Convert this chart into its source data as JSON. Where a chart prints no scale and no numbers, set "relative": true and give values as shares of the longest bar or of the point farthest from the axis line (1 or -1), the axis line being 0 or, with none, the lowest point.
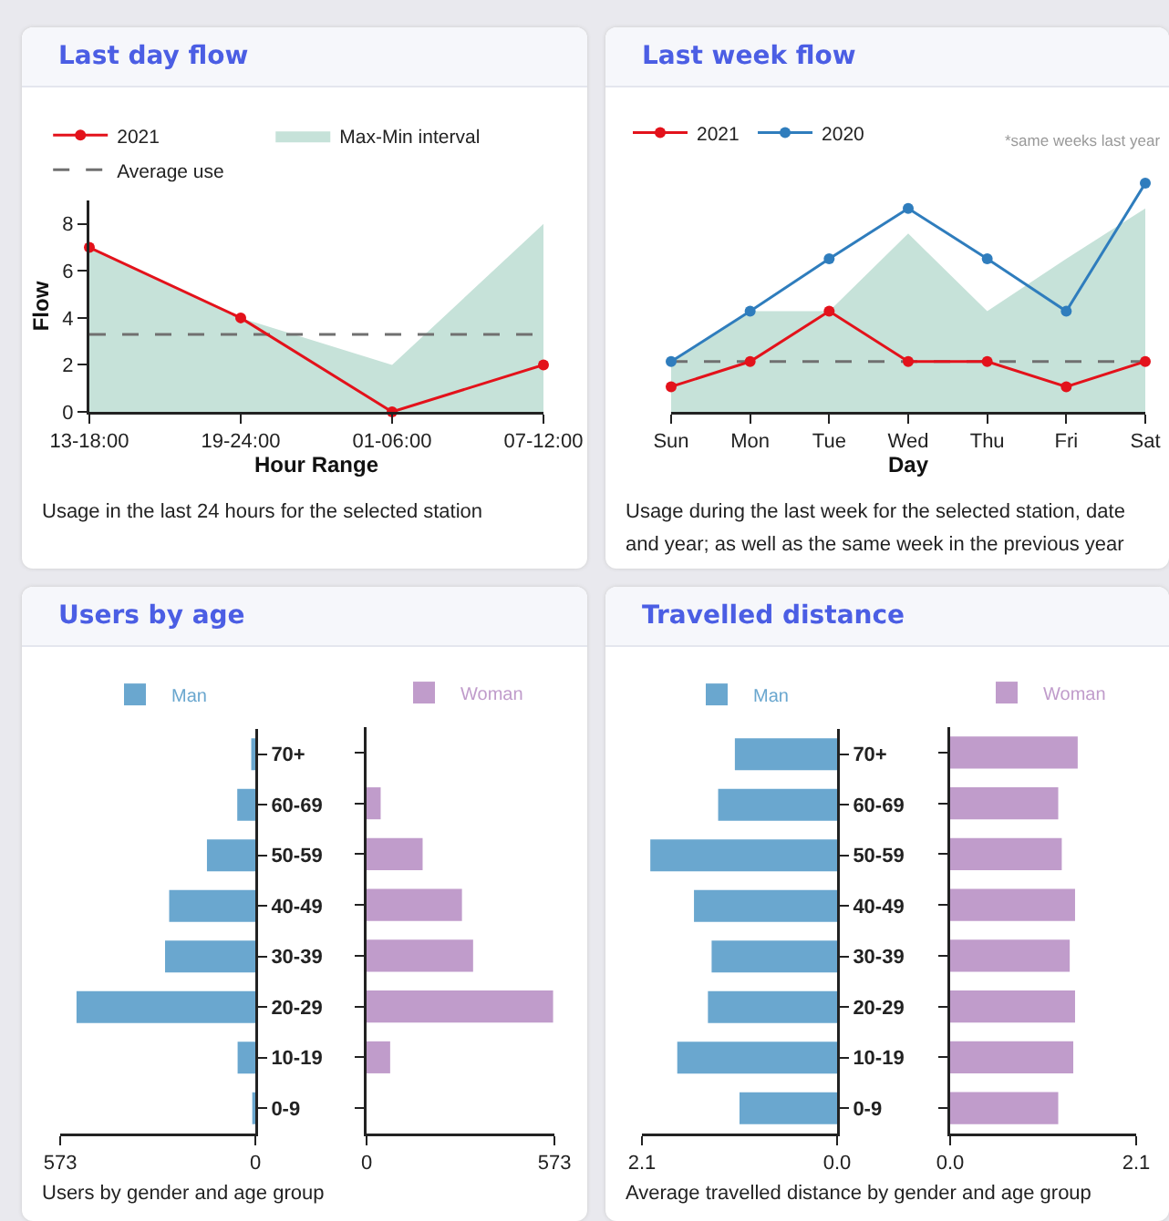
{
  "chart_data": [
    {
      "type": "line",
      "title": "Last day flow",
      "xlabel": "Hour Range",
      "ylabel": "Flow",
      "categories": [
        "13-18:00",
        "19-24:00",
        "01-06:00",
        "07-12:00"
      ],
      "series": [
        {
          "name": "2021",
          "color": "#e3121b",
          "values": [
            7,
            4,
            0,
            2
          ],
          "marker": "circle"
        },
        {
          "name": "Max-Min interval",
          "type": "area",
          "color": "#c6e2d9",
          "values": [
            7,
            4,
            2,
            8
          ]
        }
      ],
      "ylim": [
        0,
        9
      ],
      "yticks": [
        0,
        2,
        4,
        6,
        8
      ],
      "ref_lines": [
        {
          "axis": "y",
          "value": 3.3,
          "label": "Average use",
          "color": "#707070",
          "line_style": "dashed"
        }
      ],
      "legend": "top",
      "annotations": [
        "Usage in the last 24 hours for the selected station"
      ]
    },
    {
      "type": "line",
      "title": "Last week flow",
      "xlabel": "Day",
      "relative": true,
      "categories": [
        "Sun",
        "Mon",
        "Tue",
        "Wed",
        "Thu",
        "Fri",
        "Sat"
      ],
      "series": [
        {
          "name": "2021",
          "color": "#e3121b",
          "values": [
            0.11,
            0.22,
            0.44,
            0.22,
            0.22,
            0.11,
            0.22
          ],
          "marker": "circle"
        },
        {
          "name": "2020",
          "color": "#2f7dbd",
          "values": [
            0.22,
            0.44,
            0.67,
            0.89,
            0.67,
            0.44,
            1
          ],
          "marker": "circle"
        },
        {
          "type": "area",
          "color": "#c6e2d9",
          "values": [
            0.22,
            0.44,
            0.44,
            0.78,
            0.44,
            0.67,
            0.89
          ]
        }
      ],
      "ref_lines": [
        {
          "axis": "y",
          "value": 0.22,
          "color": "#707070",
          "line_style": "dashed"
        }
      ],
      "legend": "top",
      "annotations": [
        "*same weeks last year",
        "Usage during the last week for the selected station, date and year; as well as the same week in the previous year"
      ]
    },
    {
      "type": "bar",
      "orientation": "horizontal",
      "title": "Users by age",
      "categories": [
        "70+",
        "60-69",
        "50-59",
        "40-49",
        "30-39",
        "20-29",
        "10-19",
        "0-9"
      ],
      "series": [
        {
          "name": "Man",
          "color": "#6aa7cf",
          "values": [
            12,
            53,
            142,
            253,
            265,
            525,
            52,
            9
          ]
        }
      ],
      "xlim": [
        573,
        0
      ],
      "xticks": [
        573,
        0
      ],
      "legend": "top",
      "annotations": [
        "Users by gender and age group"
      ]
    },
    {
      "type": "bar",
      "orientation": "horizontal",
      "categories": [
        null,
        null,
        null,
        null,
        null,
        null,
        null,
        null
      ],
      "series": [
        {
          "name": "Woman",
          "color": "#c09ccb",
          "values": [
            0,
            43,
            171,
            291,
            325,
            569,
            72,
            0
          ]
        }
      ],
      "xlim": [
        0,
        573
      ],
      "xticks": [
        0,
        573
      ],
      "legend": "top"
    },
    {
      "type": "bar",
      "orientation": "horizontal",
      "title": "Travelled distance",
      "categories": [
        "70+",
        "60-69",
        "50-59",
        "40-49",
        "30-39",
        "20-29",
        "10-19",
        "0-9"
      ],
      "series": [
        {
          "name": "Man",
          "color": "#6aa7cf",
          "values": [
            1.1,
            1.28,
            2.01,
            1.54,
            1.35,
            1.39,
            1.72,
            1.05
          ]
        }
      ],
      "xlim": [
        2.1,
        0
      ],
      "xticks": [
        2.1,
        {
          "value": 0,
          "label": "0.0"
        }
      ],
      "legend": "top",
      "annotations": [
        "Average travelled distance by gender and age group"
      ]
    },
    {
      "type": "bar",
      "orientation": "horizontal",
      "categories": [
        null,
        null,
        null,
        null,
        null,
        null,
        null,
        null
      ],
      "series": [
        {
          "name": "Woman",
          "color": "#c09ccb",
          "values": [
            1.44,
            1.22,
            1.26,
            1.41,
            1.35,
            1.41,
            1.39,
            1.22
          ]
        }
      ],
      "xlim": [
        0,
        2.1
      ],
      "xticks": [
        {
          "value": 0,
          "label": "0.0"
        },
        2.1
      ],
      "legend": "top"
    }
  ]
}
